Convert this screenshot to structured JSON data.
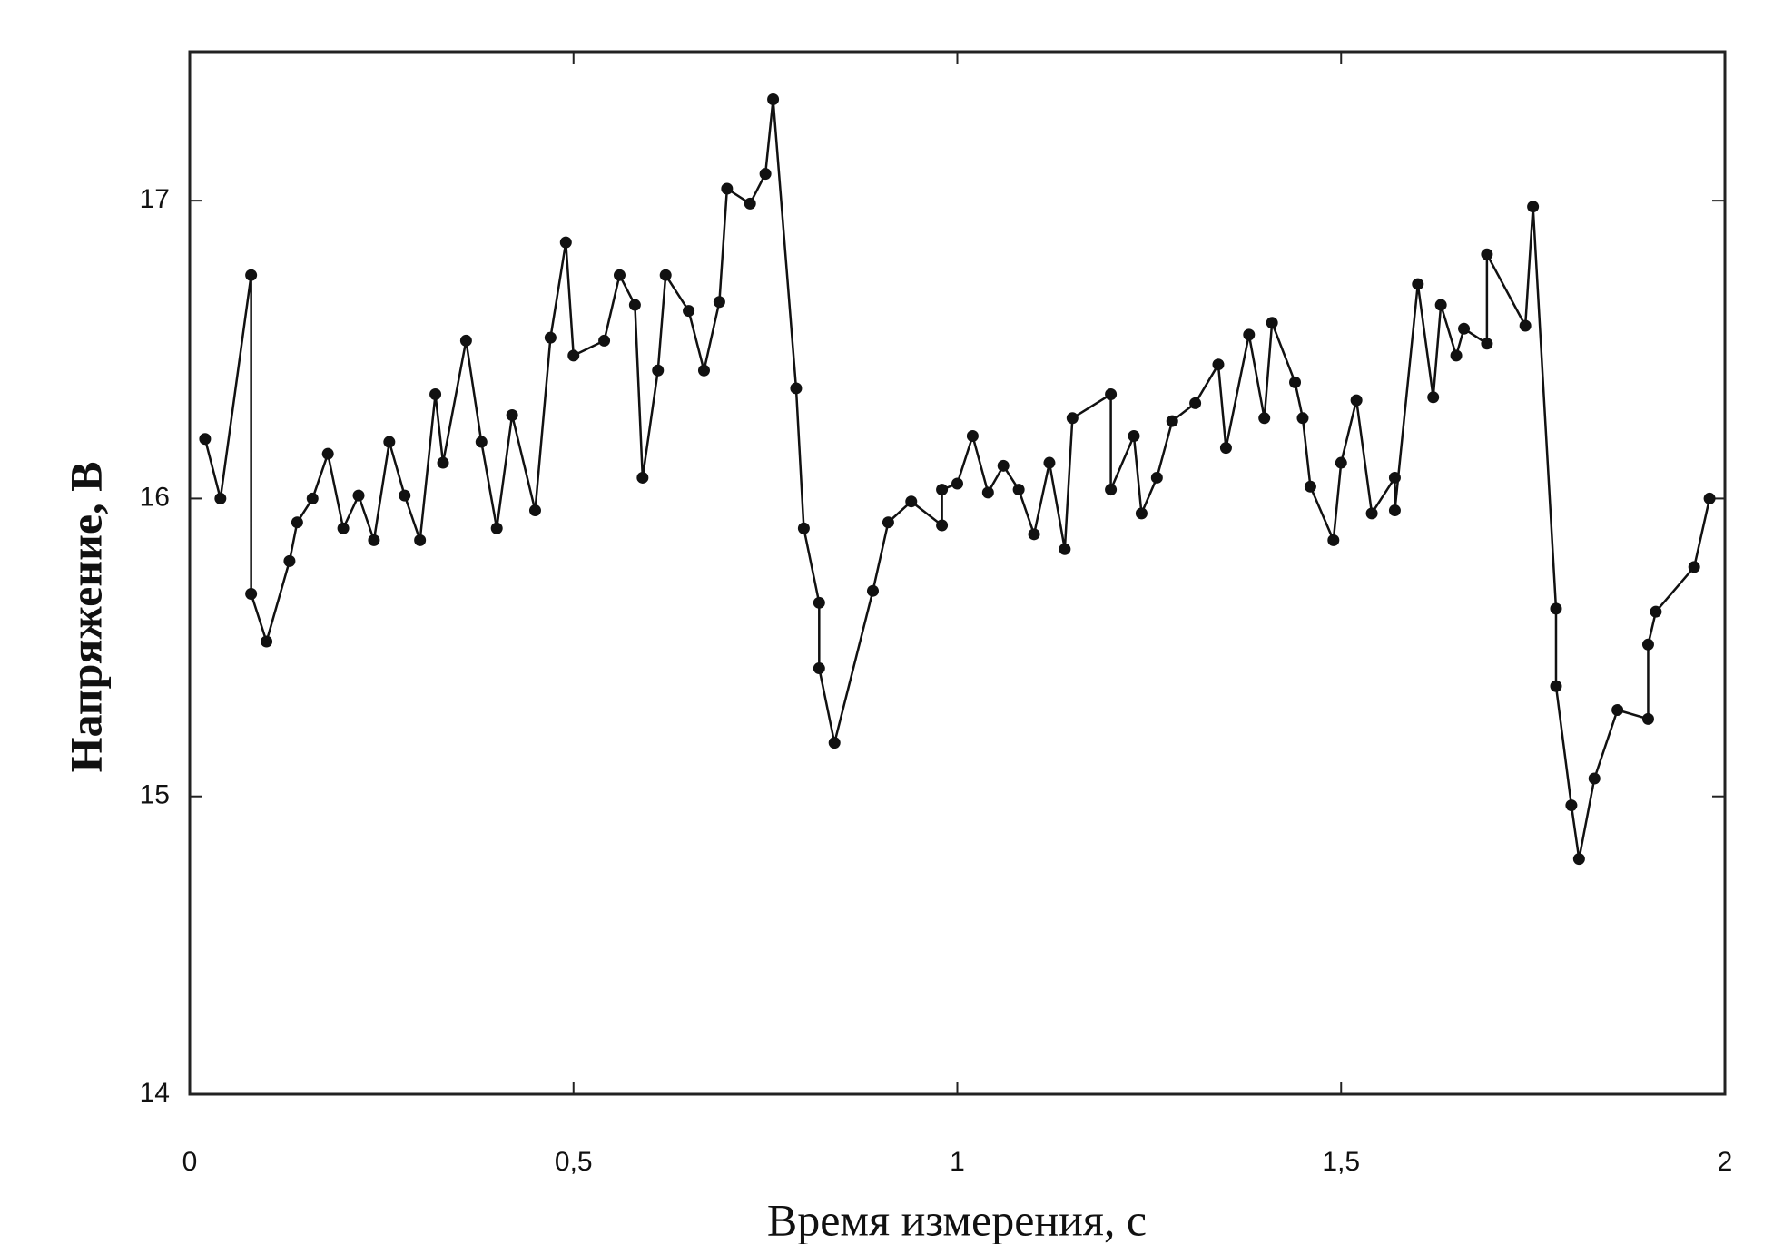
{
  "chart_data": {
    "type": "line",
    "x_label": "Время измерения, с",
    "y_label": "Напряжение, В",
    "x": [
      0.02,
      0.04,
      0.08,
      0.08,
      0.1,
      0.13,
      0.14,
      0.16,
      0.18,
      0.2,
      0.22,
      0.24,
      0.26,
      0.28,
      0.3,
      0.32,
      0.33,
      0.36,
      0.38,
      0.4,
      0.42,
      0.45,
      0.47,
      0.49,
      0.5,
      0.54,
      0.56,
      0.58,
      0.59,
      0.61,
      0.62,
      0.65,
      0.67,
      0.69,
      0.7,
      0.73,
      0.75,
      0.76,
      0.79,
      0.8,
      0.82,
      0.82,
      0.84,
      0.89,
      0.91,
      0.94,
      0.98,
      0.98,
      1.0,
      1.02,
      1.04,
      1.06,
      1.08,
      1.1,
      1.12,
      1.14,
      1.15,
      1.2,
      1.2,
      1.23,
      1.24,
      1.26,
      1.28,
      1.31,
      1.34,
      1.35,
      1.38,
      1.4,
      1.41,
      1.44,
      1.45,
      1.46,
      1.49,
      1.5,
      1.52,
      1.54,
      1.57,
      1.57,
      1.6,
      1.62,
      1.63,
      1.65,
      1.66,
      1.69,
      1.69,
      1.74,
      1.75,
      1.78,
      1.78,
      1.8,
      1.81,
      1.83,
      1.86,
      1.9,
      1.9,
      1.91,
      1.96,
      1.98
    ],
    "series": [
      {
        "color": "#111111",
        "values": [
          16.2,
          16.0,
          16.75,
          15.68,
          15.52,
          15.79,
          15.92,
          16.0,
          16.15,
          15.9,
          16.01,
          15.86,
          16.19,
          16.01,
          15.86,
          16.35,
          16.12,
          16.53,
          16.19,
          15.9,
          16.28,
          15.96,
          16.54,
          16.86,
          16.48,
          16.53,
          16.75,
          16.65,
          16.07,
          16.43,
          16.75,
          16.63,
          16.43,
          16.66,
          17.04,
          16.99,
          17.09,
          17.34,
          16.37,
          15.9,
          15.65,
          15.43,
          15.18,
          15.69,
          15.92,
          15.99,
          15.91,
          16.03,
          16.05,
          16.21,
          16.02,
          16.11,
          16.03,
          15.88,
          16.12,
          15.83,
          16.27,
          16.35,
          16.03,
          16.21,
          15.95,
          16.07,
          16.26,
          16.32,
          16.45,
          16.17,
          16.55,
          16.27,
          16.59,
          16.39,
          16.27,
          16.04,
          15.86,
          16.12,
          16.33,
          15.95,
          16.07,
          15.96,
          16.72,
          16.34,
          16.65,
          16.48,
          16.57,
          16.52,
          16.82,
          16.58,
          16.98,
          15.63,
          15.37,
          14.97,
          14.79,
          15.06,
          15.29,
          15.26,
          15.51,
          15.62,
          15.77,
          16.0
        ]
      }
    ],
    "xlim": [
      0,
      2
    ],
    "ylim": [
      14,
      17.5
    ],
    "xticks": [
      0,
      {
        "value": 0.5,
        "label": "0,5"
      },
      1,
      {
        "value": 1.5,
        "label": "1,5"
      },
      2
    ],
    "yticks": [
      14,
      15,
      16,
      17
    ]
  }
}
